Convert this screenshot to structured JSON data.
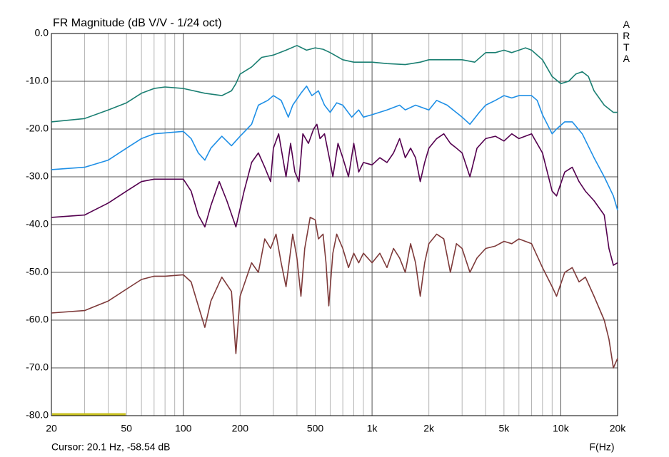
{
  "chart_data": {
    "type": "line",
    "title": "FR Magnitude (dB V/V - 1/24 oct)",
    "watermark": "ARTA",
    "xlabel": "F(Hz)",
    "status": "Cursor: 20.1 Hz, -58.54 dB",
    "xscale": "log",
    "grid": true,
    "xlim": [
      20,
      20000
    ],
    "ylim": [
      -80,
      0
    ],
    "xticks": [
      20,
      50,
      100,
      200,
      500,
      {
        "value": 1000,
        "label": "1k"
      },
      {
        "value": 2000,
        "label": "2k"
      },
      {
        "value": 5000,
        "label": "5k"
      },
      {
        "value": 10000,
        "label": "10k"
      },
      {
        "value": 20000,
        "label": "20k"
      }
    ],
    "xminor": [
      30,
      40,
      60,
      70,
      80,
      90,
      300,
      400,
      600,
      700,
      800,
      900,
      3000,
      4000,
      6000,
      7000,
      8000,
      9000
    ],
    "yticks": [
      {
        "value": 0,
        "label": "0.0"
      },
      {
        "value": -10,
        "label": "-10.0"
      },
      {
        "value": -20,
        "label": "-20.0"
      },
      {
        "value": -30,
        "label": "-30.0"
      },
      {
        "value": -40,
        "label": "-40.0"
      },
      {
        "value": -50,
        "label": "-50.0"
      },
      {
        "value": -60,
        "label": "-60.0"
      },
      {
        "value": -70,
        "label": "-70.0"
      },
      {
        "value": -80,
        "label": "-80.0"
      }
    ],
    "series": [
      {
        "color": "#1a7f72",
        "x": [
          20,
          30,
          40,
          50,
          60,
          70,
          80,
          100,
          130,
          160,
          180,
          190,
          200,
          230,
          260,
          300,
          350,
          400,
          450,
          500,
          550,
          600,
          700,
          800,
          1000,
          1200,
          1500,
          1800,
          2000,
          2500,
          3000,
          3500,
          4000,
          4500,
          5000,
          5500,
          6000,
          6500,
          7000,
          8000,
          9000,
          10000,
          11000,
          12000,
          13000,
          14000,
          15000,
          17000,
          19000,
          20000
        ],
        "values": [
          -18.5,
          -17.8,
          -16,
          -14.5,
          -12.5,
          -11.5,
          -11.2,
          -11.5,
          -12.5,
          -13,
          -12,
          -10.5,
          -8.5,
          -7,
          -5,
          -4.5,
          -3.5,
          -2.5,
          -3.5,
          -3,
          -3.3,
          -4,
          -5.5,
          -6,
          -6,
          -6.3,
          -6.5,
          -6,
          -5.5,
          -5.5,
          -5.5,
          -6,
          -4,
          -4,
          -3.5,
          -4,
          -3.5,
          -3,
          -3.5,
          -5.5,
          -9,
          -10.5,
          -10,
          -8.5,
          -8,
          -9,
          -12,
          -15,
          -16.5,
          -16.5
        ]
      },
      {
        "color": "#1e8fe6",
        "x": [
          20,
          30,
          40,
          50,
          60,
          70,
          80,
          100,
          110,
          120,
          130,
          140,
          160,
          180,
          200,
          230,
          250,
          280,
          300,
          330,
          360,
          380,
          420,
          450,
          480,
          520,
          560,
          600,
          650,
          700,
          780,
          850,
          900,
          1000,
          1200,
          1400,
          1500,
          1700,
          2000,
          2200,
          2500,
          3000,
          3300,
          3700,
          4000,
          4500,
          5000,
          5500,
          6000,
          7000,
          7500,
          8000,
          9000,
          9500,
          10500,
          11500,
          13000,
          15000,
          17000,
          19000,
          20000
        ],
        "values": [
          -28.5,
          -28,
          -26.5,
          -24,
          -22,
          -21,
          -20.8,
          -20.5,
          -22,
          -25,
          -26.5,
          -24,
          -21.5,
          -23.5,
          -21.5,
          -19,
          -15,
          -14,
          -13,
          -14,
          -17.5,
          -15,
          -12.5,
          -11,
          -13,
          -12,
          -15,
          -16.5,
          -14.5,
          -15,
          -17.5,
          -16,
          -17.5,
          -17,
          -16,
          -15,
          -16,
          -15,
          -16,
          -14,
          -15,
          -17.5,
          -19,
          -16.5,
          -15,
          -14,
          -13,
          -13.5,
          -13,
          -13,
          -14,
          -17,
          -21,
          -20,
          -18.5,
          -18.5,
          -21,
          -26,
          -30,
          -34,
          -37
        ]
      },
      {
        "color": "#54004f",
        "x": [
          20,
          30,
          40,
          50,
          60,
          70,
          80,
          100,
          110,
          120,
          130,
          140,
          155,
          170,
          190,
          210,
          230,
          250,
          270,
          290,
          300,
          320,
          340,
          350,
          370,
          390,
          410,
          430,
          460,
          490,
          510,
          530,
          560,
          600,
          620,
          660,
          700,
          750,
          800,
          850,
          900,
          1000,
          1100,
          1200,
          1300,
          1400,
          1500,
          1600,
          1700,
          1800,
          1900,
          2000,
          2200,
          2400,
          2600,
          2800,
          3000,
          3300,
          3600,
          4000,
          4500,
          5000,
          5500,
          6000,
          7000,
          8000,
          9000,
          9500,
          10500,
          11500,
          12500,
          13500,
          15000,
          17000,
          18000,
          19000,
          20000
        ],
        "values": [
          -38.5,
          -38,
          -35.5,
          -33,
          -31,
          -30.5,
          -30.5,
          -30.5,
          -33,
          -38,
          -40.5,
          -36,
          -31,
          -35,
          -40.5,
          -33,
          -27,
          -25,
          -28,
          -31,
          -24,
          -21,
          -27,
          -30,
          -23,
          -29,
          -31,
          -21,
          -23,
          -20,
          -19,
          -22,
          -21,
          -27,
          -30,
          -23,
          -26,
          -30,
          -23,
          -29,
          -27,
          -27.5,
          -26,
          -27,
          -25,
          -22,
          -26,
          -24,
          -26,
          -31,
          -27,
          -24,
          -22,
          -21,
          -23,
          -24,
          -25,
          -30,
          -24,
          -22,
          -21.5,
          -22.5,
          -21,
          -22,
          -21,
          -25,
          -33,
          -34,
          -29,
          -28,
          -31,
          -33,
          -35,
          -38,
          -45,
          -48.5,
          -48
        ]
      },
      {
        "color": "#7e3a3a",
        "x": [
          20,
          30,
          40,
          50,
          60,
          70,
          80,
          100,
          110,
          120,
          130,
          140,
          160,
          180,
          190,
          200,
          230,
          250,
          270,
          290,
          310,
          330,
          350,
          380,
          400,
          420,
          440,
          470,
          500,
          520,
          550,
          570,
          590,
          620,
          650,
          700,
          750,
          800,
          850,
          900,
          1000,
          1100,
          1200,
          1300,
          1400,
          1500,
          1600,
          1700,
          1800,
          1900,
          2000,
          2200,
          2400,
          2600,
          2800,
          3000,
          3300,
          3600,
          4000,
          4500,
          5000,
          5500,
          6000,
          7000,
          8000,
          9000,
          9500,
          10500,
          11500,
          12500,
          13500,
          15000,
          17000,
          18000,
          19000,
          20000
        ],
        "values": [
          -58.5,
          -58,
          -56,
          -53.5,
          -51.5,
          -50.8,
          -50.8,
          -50.5,
          -52,
          -57,
          -61.5,
          -56,
          -51,
          -54,
          -67,
          -55,
          -48,
          -50,
          -43,
          -45,
          -42,
          -48,
          -53,
          -42,
          -47,
          -55,
          -45,
          -38.5,
          -39,
          -43,
          -42,
          -48,
          -57,
          -46,
          -42,
          -45,
          -49,
          -46,
          -48,
          -46,
          -48,
          -46,
          -49,
          -45,
          -47,
          -50,
          -44,
          -48,
          -55,
          -48,
          -44,
          -42,
          -43,
          -50,
          -44,
          -45,
          -50,
          -47,
          -45,
          -44.5,
          -43.5,
          -44,
          -43,
          -44,
          -49,
          -53,
          -55,
          -50,
          -49,
          -52,
          -51,
          -55,
          -60,
          -64,
          -70,
          -68
        ]
      }
    ]
  }
}
